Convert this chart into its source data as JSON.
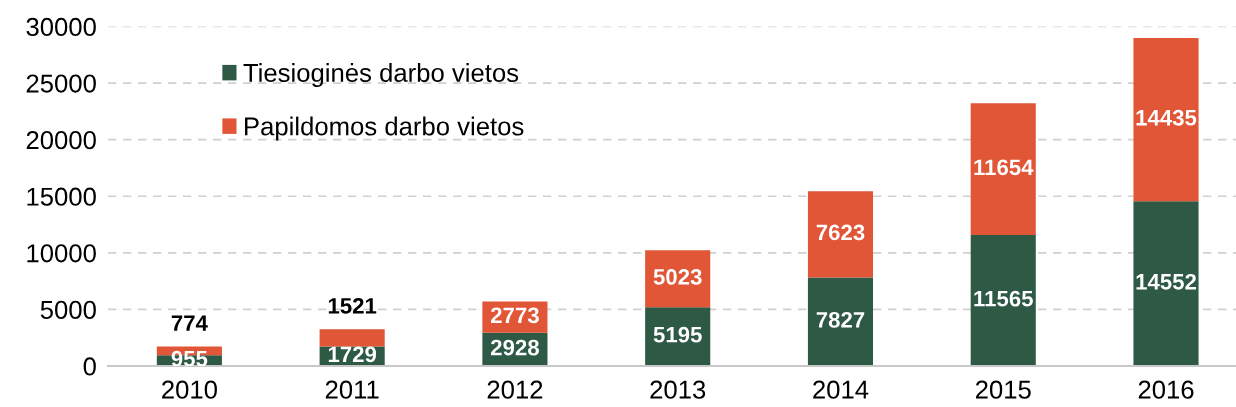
{
  "chart_data": {
    "type": "bar",
    "stacked": true,
    "categories": [
      "2010",
      "2011",
      "2012",
      "2013",
      "2014",
      "2015",
      "2016"
    ],
    "series": [
      {
        "name": "Tiesioginės darbo vietos",
        "color": "#2e5944",
        "values": [
          955,
          1729,
          2928,
          5195,
          7827,
          11565,
          14552
        ]
      },
      {
        "name": "Papildomos darbo vietos",
        "color": "#e05637",
        "values": [
          774,
          1521,
          2773,
          5023,
          7623,
          11654,
          14435
        ]
      }
    ],
    "ylim": [
      0,
      30000
    ],
    "yticks": [
      0,
      5000,
      10000,
      15000,
      20000,
      25000,
      30000
    ],
    "grid": "y",
    "legend": "top left",
    "data_labels": true
  }
}
